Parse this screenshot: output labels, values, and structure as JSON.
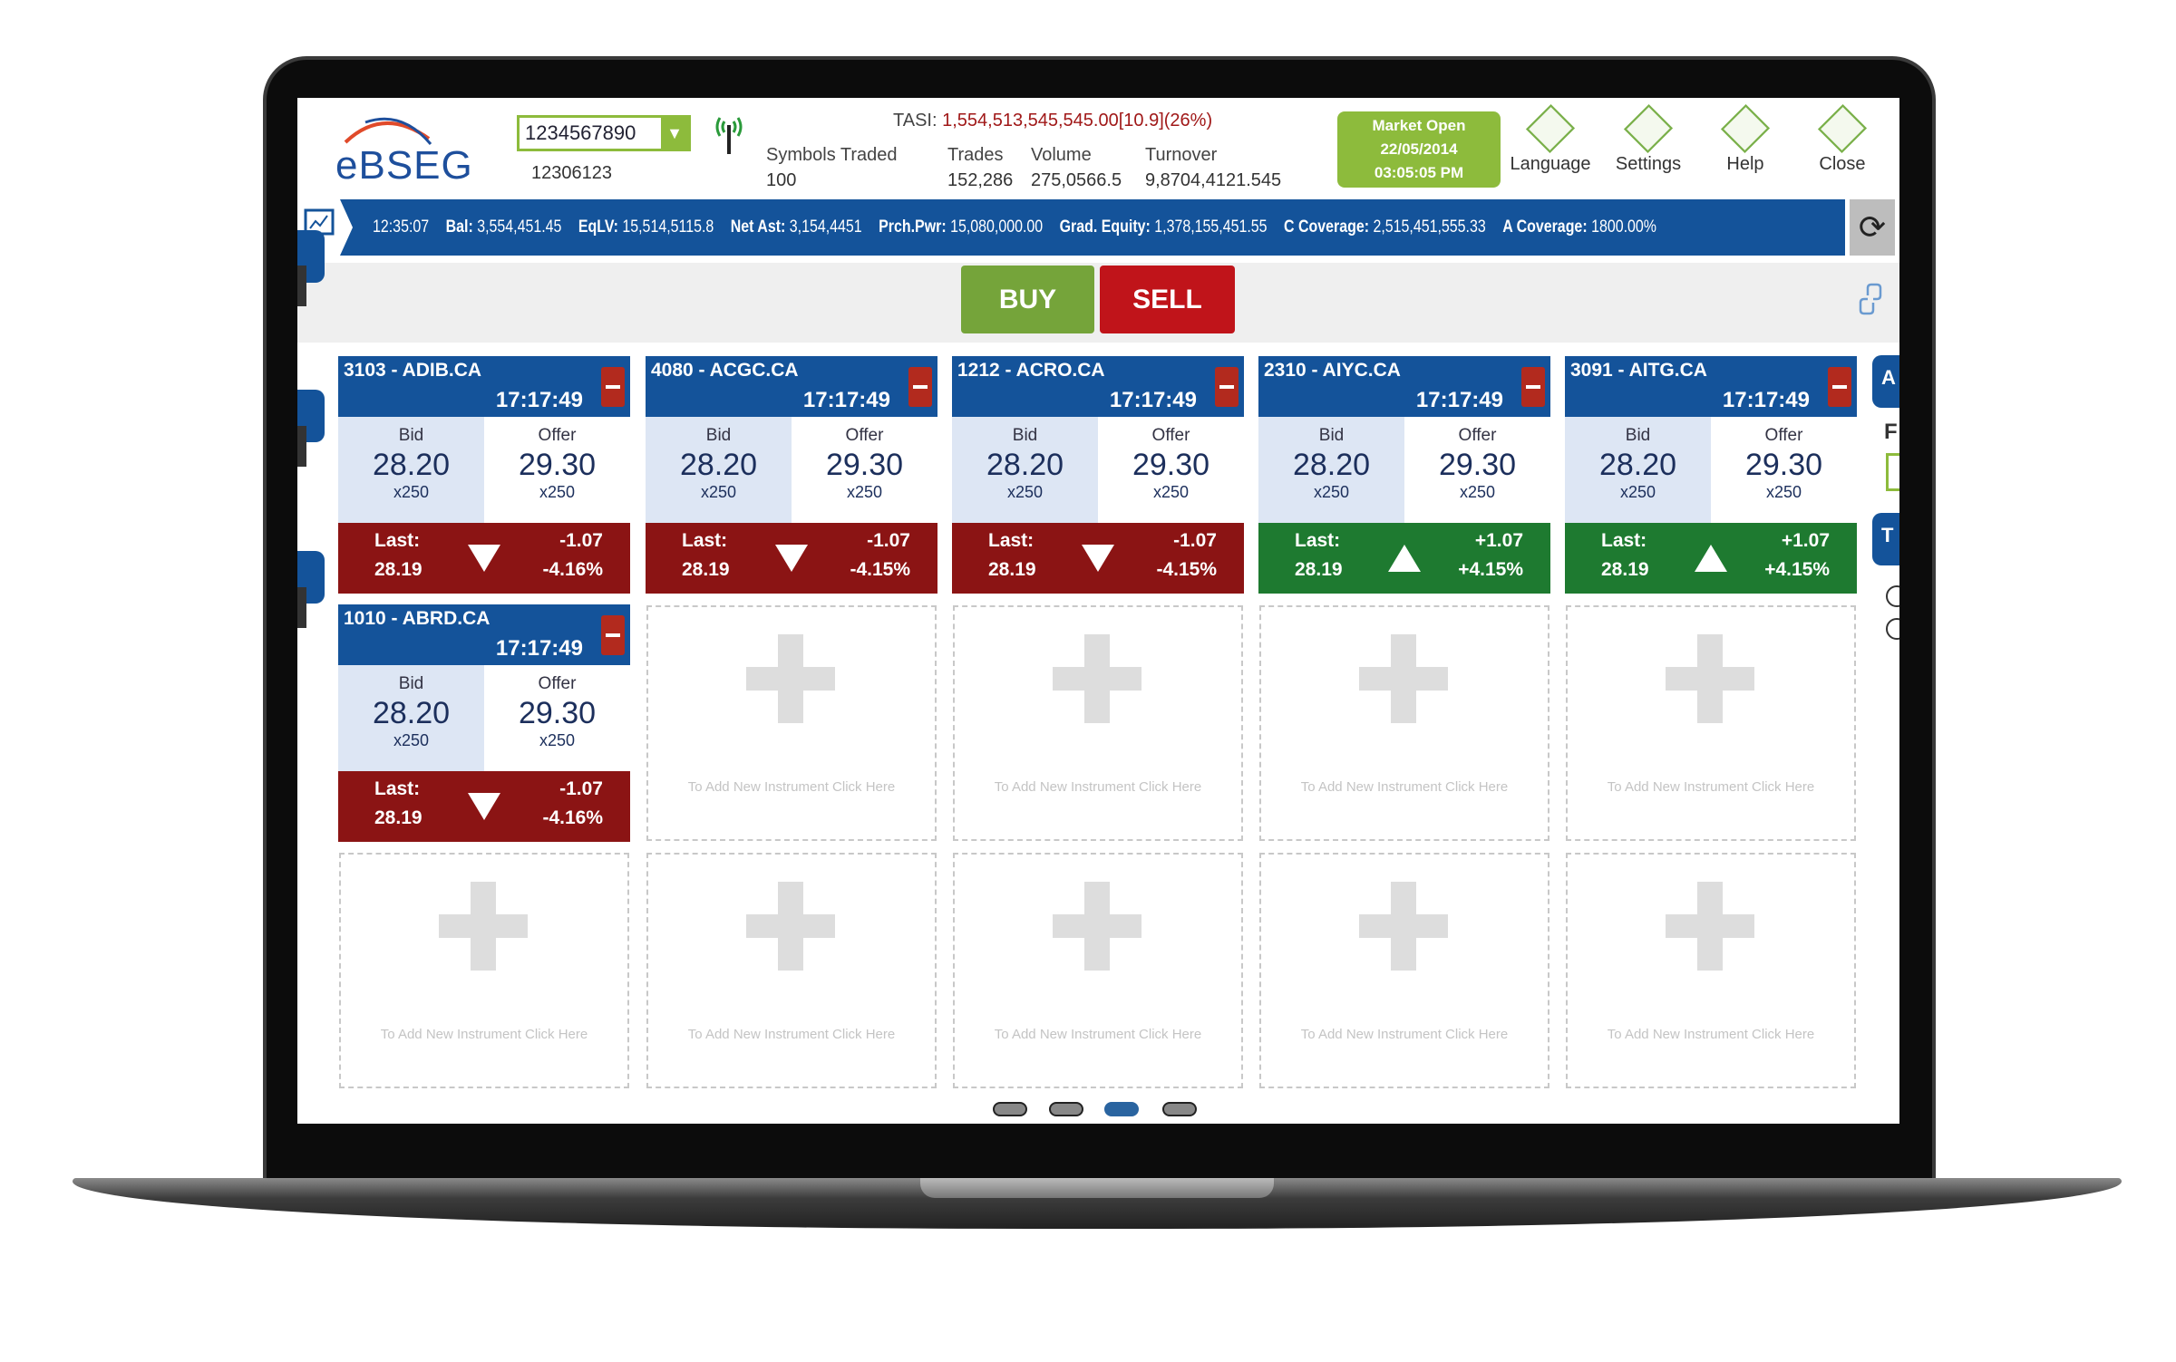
{
  "header": {
    "logo": "eBSEG",
    "account_dropdown": "1234567890",
    "account_sub": "12306123",
    "tasi": "TASI:",
    "tasi_value": "1,554,513,545,545.00[10.9](26%)",
    "stats": [
      {
        "label": "Symbols Traded",
        "value": "100"
      },
      {
        "label": "Trades",
        "value": "152,286"
      },
      {
        "label": "Volume",
        "value": "275,0566.5"
      },
      {
        "label": "Turnover",
        "value": "9,8704,4121.545"
      }
    ],
    "market": {
      "status": "Market Open",
      "date": "22/05/2014",
      "time": "03:05:05 PM"
    },
    "icons": [
      {
        "label": "Language",
        "icon": "language-icon"
      },
      {
        "label": "Settings",
        "icon": "settings-icon"
      },
      {
        "label": "Help",
        "icon": "help-icon"
      },
      {
        "label": "Close",
        "icon": "close-icon"
      }
    ]
  },
  "infobar": {
    "time": "12:35:07",
    "items": [
      {
        "label": "Bal:",
        "value": "3,554,451.45"
      },
      {
        "label": "EqLV:",
        "value": "15,514,5115.8"
      },
      {
        "label": "Net Ast:",
        "value": "3,154,4451"
      },
      {
        "label": "Prch.Pwr:",
        "value": "15,080,000.00"
      },
      {
        "label": "Grad. Equity:",
        "value": "1,378,155,451.55"
      },
      {
        "label": "C Coverage:",
        "value": "2,515,451,555.33"
      },
      {
        "label": "A Coverage:",
        "value": "1800.00%"
      }
    ]
  },
  "toolbar": {
    "buy": "BUY",
    "sell": "SELL"
  },
  "colors": {
    "blue": "#14539a",
    "down": "#8b1414",
    "up": "#1e7a30",
    "green": "#8dbb3c",
    "sell": "#c0141a",
    "buy": "#75a43a"
  },
  "labels": {
    "bid": "Bid",
    "offer": "Offer",
    "last": "Last:",
    "empty": "To Add New Instrument Click Here"
  },
  "cards": [
    {
      "symbol": "3103 - ADIB.CA",
      "time": "17:17:49",
      "bid": "28.20",
      "bid_qty": "x250",
      "offer": "29.30",
      "offer_qty": "x250",
      "last": "28.19",
      "change": "-1.07",
      "pct": "-4.16%",
      "dir": "down"
    },
    {
      "symbol": "4080 - ACGC.CA",
      "time": "17:17:49",
      "bid": "28.20",
      "bid_qty": "x250",
      "offer": "29.30",
      "offer_qty": "x250",
      "last": "28.19",
      "change": "-1.07",
      "pct": "-4.15%",
      "dir": "down"
    },
    {
      "symbol": "1212 - ACRO.CA",
      "time": "17:17:49",
      "bid": "28.20",
      "bid_qty": "x250",
      "offer": "29.30",
      "offer_qty": "x250",
      "last": "28.19",
      "change": "-1.07",
      "pct": "-4.15%",
      "dir": "down"
    },
    {
      "symbol": "2310 - AIYC.CA",
      "time": "17:17:49",
      "bid": "28.20",
      "bid_qty": "x250",
      "offer": "29.30",
      "offer_qty": "x250",
      "last": "28.19",
      "change": "+1.07",
      "pct": "+4.15%",
      "dir": "up"
    },
    {
      "symbol": "3091 - AITG.CA",
      "time": "17:17:49",
      "bid": "28.20",
      "bid_qty": "x250",
      "offer": "29.30",
      "offer_qty": "x250",
      "last": "28.19",
      "change": "+1.07",
      "pct": "+4.15%",
      "dir": "up"
    },
    {
      "symbol": "1010 - ABRD.CA",
      "time": "17:17:49",
      "bid": "28.20",
      "bid_qty": "x250",
      "offer": "29.30",
      "offer_qty": "x250",
      "last": "28.19",
      "change": "-1.07",
      "pct": "-4.16%",
      "dir": "down"
    }
  ],
  "right_panel": {
    "tab1": "A",
    "label": "F",
    "tab2": "T"
  },
  "pagination": {
    "pages": 4,
    "current": 3
  }
}
